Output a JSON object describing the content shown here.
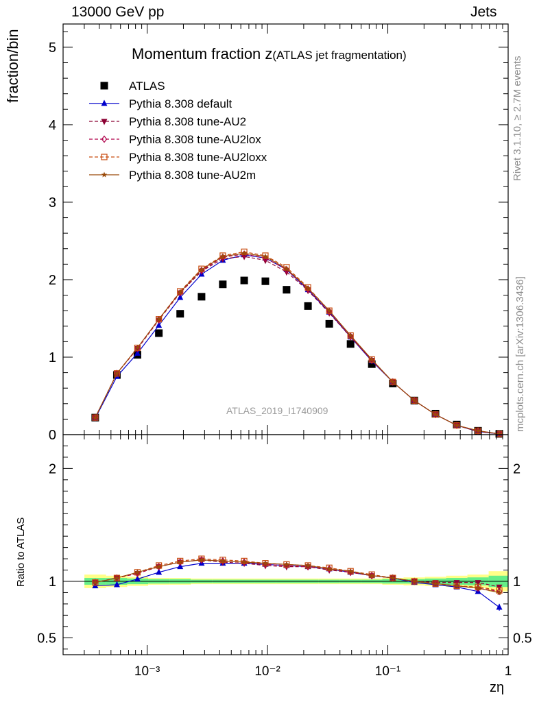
{
  "header": {
    "energy": "13000 GeV pp",
    "category": "Jets"
  },
  "title": {
    "main": "Momentum fraction z",
    "sub": "(ATLAS jet fragmentation)"
  },
  "side_labels": {
    "rivet": "Rivet 3.1.10, ≥ 2.7M events",
    "source": "mcplots.cern.ch [arXiv:1306.3436]"
  },
  "analysis_id": "ATLAS_2019_I1740909",
  "colors": {
    "atlas": "#000000",
    "default": "#0000cc",
    "au2": "#8b0033",
    "au2lox": "#b0004a",
    "au2loxx": "#c84a0e",
    "au2m": "#9a4a0a",
    "band_inner": "#66ee88",
    "band_outer": "#ffff88"
  },
  "chart_data": [
    {
      "type": "scatter",
      "panel": "main",
      "title": "Momentum fraction z(ATLAS jet fragmentation)",
      "xlabel": "zη",
      "ylabel": "fraction/bin",
      "xscale": "log",
      "xlim": [
        0.0002,
        1.0
      ],
      "ylim": [
        0,
        5.3
      ],
      "yticks": [
        0,
        1,
        2,
        3,
        4,
        5
      ],
      "xtick_labels": [
        "10⁻³",
        "10⁻²",
        "10⁻¹",
        "1"
      ],
      "legend_placement": "top-left",
      "x": [
        0.00037,
        0.00056,
        0.00083,
        0.00125,
        0.00188,
        0.00283,
        0.00425,
        0.0064,
        0.0096,
        0.0144,
        0.0217,
        0.0326,
        0.049,
        0.0736,
        0.11,
        0.166,
        0.249,
        0.374,
        0.562,
        0.844
      ],
      "series": [
        {
          "name": "ATLAS",
          "color": "#000000",
          "marker": "square",
          "line": "none",
          "values": [
            0.22,
            0.77,
            1.03,
            1.31,
            1.56,
            1.78,
            1.94,
            1.99,
            1.98,
            1.87,
            1.66,
            1.43,
            1.17,
            0.91,
            0.66,
            0.44,
            0.27,
            0.13,
            0.05,
            0.01
          ]
        },
        {
          "name": "Pythia 8.308 default",
          "color": "#0000cc",
          "marker": "triangle-up",
          "line": "solid",
          "values": [
            0.21,
            0.75,
            1.05,
            1.41,
            1.77,
            2.07,
            2.25,
            2.32,
            2.28,
            2.13,
            1.87,
            1.58,
            1.26,
            0.95,
            0.68,
            0.44,
            0.26,
            0.12,
            0.04,
            0.01
          ]
        },
        {
          "name": "Pythia 8.308 tune-AU2",
          "color": "#8b0033",
          "marker": "triangle-down",
          "line": "dashed",
          "values": [
            0.22,
            0.79,
            1.11,
            1.48,
            1.83,
            2.11,
            2.27,
            2.3,
            2.25,
            2.1,
            1.86,
            1.57,
            1.26,
            0.96,
            0.68,
            0.44,
            0.26,
            0.12,
            0.04,
            0.01
          ]
        },
        {
          "name": "Pythia 8.308 tune-AU2lox",
          "color": "#b0004a",
          "marker": "diamond-open",
          "line": "dashed",
          "values": [
            0.22,
            0.79,
            1.11,
            1.48,
            1.83,
            2.12,
            2.29,
            2.33,
            2.28,
            2.13,
            1.88,
            1.59,
            1.27,
            0.96,
            0.68,
            0.44,
            0.26,
            0.12,
            0.05,
            0.01
          ]
        },
        {
          "name": "Pythia 8.308 tune-AU2loxx",
          "color": "#c84a0e",
          "marker": "square-open",
          "line": "dashed",
          "values": [
            0.22,
            0.79,
            1.12,
            1.49,
            1.85,
            2.14,
            2.31,
            2.36,
            2.31,
            2.16,
            1.9,
            1.6,
            1.28,
            0.97,
            0.68,
            0.44,
            0.26,
            0.12,
            0.05,
            0.01
          ]
        },
        {
          "name": "Pythia 8.308 tune-AU2m",
          "color": "#9a4a0a",
          "marker": "star",
          "line": "solid",
          "values": [
            0.22,
            0.79,
            1.12,
            1.49,
            1.84,
            2.13,
            2.3,
            2.34,
            2.3,
            2.14,
            1.89,
            1.6,
            1.28,
            0.97,
            0.68,
            0.44,
            0.26,
            0.12,
            0.05,
            0.01
          ]
        }
      ]
    },
    {
      "type": "line",
      "panel": "ratio",
      "ylabel": "Ratio to ATLAS",
      "xscale": "log",
      "xlim": [
        0.0002,
        1.0
      ],
      "ylim": [
        0.35,
        2.3
      ],
      "yticks": [
        0.5,
        1,
        2
      ],
      "x": [
        0.00037,
        0.00056,
        0.00083,
        0.00125,
        0.00188,
        0.00283,
        0.00425,
        0.0064,
        0.0096,
        0.0144,
        0.0217,
        0.0326,
        0.049,
        0.0736,
        0.11,
        0.166,
        0.249,
        0.374,
        0.562,
        0.844
      ],
      "band": {
        "inner_halfwidth": [
          0.03,
          0.03,
          0.025,
          0.02,
          0.02,
          0.015,
          0.015,
          0.015,
          0.015,
          0.015,
          0.015,
          0.015,
          0.015,
          0.015,
          0.02,
          0.02,
          0.025,
          0.03,
          0.035,
          0.05
        ],
        "outer_halfwidth": [
          0.06,
          0.05,
          0.04,
          0.03,
          0.03,
          0.025,
          0.025,
          0.025,
          0.025,
          0.025,
          0.025,
          0.025,
          0.025,
          0.025,
          0.03,
          0.035,
          0.04,
          0.05,
          0.06,
          0.09
        ]
      },
      "series": [
        {
          "name": "Pythia 8.308 default",
          "values": [
            0.96,
            0.97,
            1.02,
            1.08,
            1.13,
            1.16,
            1.16,
            1.16,
            1.15,
            1.14,
            1.13,
            1.11,
            1.08,
            1.05,
            1.03,
            0.99,
            0.97,
            0.95,
            0.91,
            0.77
          ]
        },
        {
          "name": "Pythia 8.308 tune-AU2",
          "values": [
            0.99,
            1.03,
            1.07,
            1.13,
            1.17,
            1.19,
            1.17,
            1.16,
            1.14,
            1.13,
            1.13,
            1.1,
            1.08,
            1.05,
            1.03,
            1.0,
            0.99,
            0.99,
            0.99,
            0.95
          ]
        },
        {
          "name": "Pythia 8.308 tune-AU2lox",
          "values": [
            0.99,
            1.03,
            1.07,
            1.13,
            1.17,
            1.19,
            1.18,
            1.17,
            1.15,
            1.14,
            1.13,
            1.11,
            1.08,
            1.05,
            1.03,
            1.0,
            0.98,
            0.96,
            0.94,
            0.91
          ]
        },
        {
          "name": "Pythia 8.308 tune-AU2loxx",
          "values": [
            0.99,
            1.03,
            1.08,
            1.14,
            1.18,
            1.2,
            1.19,
            1.18,
            1.16,
            1.15,
            1.14,
            1.12,
            1.09,
            1.06,
            1.03,
            1.0,
            0.98,
            0.96,
            0.95,
            0.92
          ]
        },
        {
          "name": "Pythia 8.308 tune-AU2m",
          "values": [
            0.99,
            1.03,
            1.08,
            1.13,
            1.17,
            1.19,
            1.18,
            1.17,
            1.16,
            1.15,
            1.14,
            1.11,
            1.09,
            1.05,
            1.03,
            1.0,
            0.98,
            0.96,
            0.94,
            0.9
          ]
        }
      ]
    }
  ]
}
